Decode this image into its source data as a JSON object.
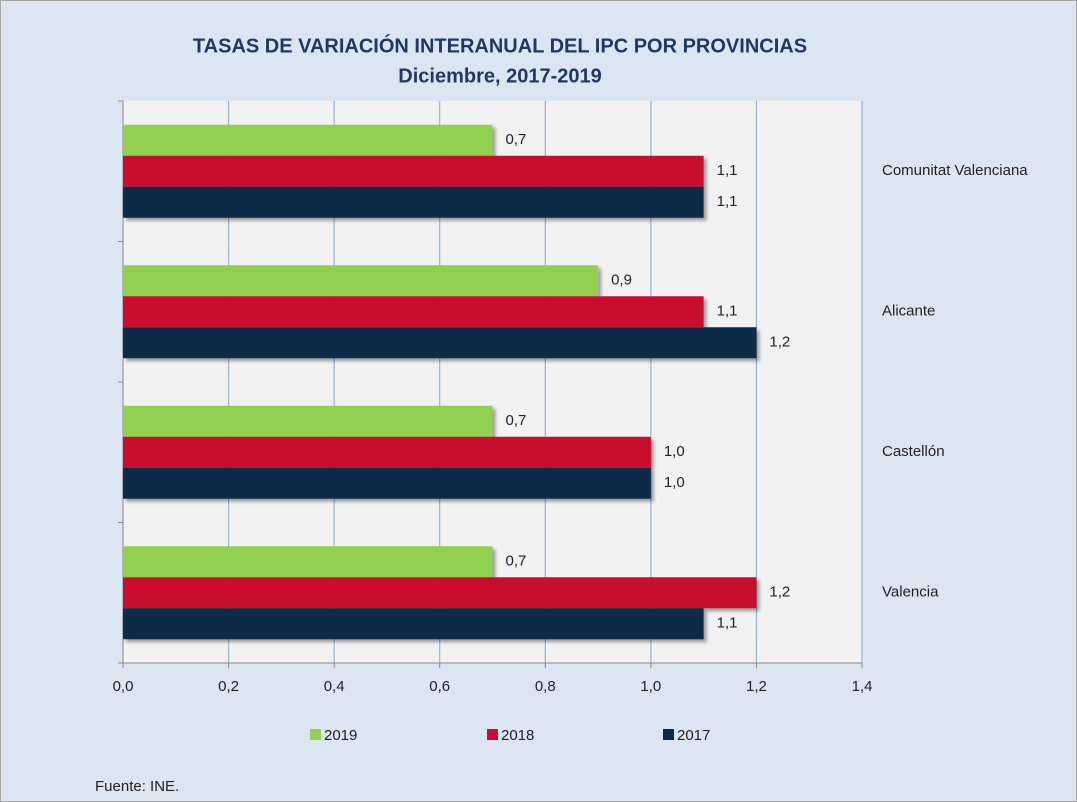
{
  "chart_data": {
    "type": "hbar",
    "title": "TASAS DE VARIACIÓN INTERANUAL DEL IPC POR PROVINCIAS",
    "subtitle": "Diciembre, 2017-2019",
    "categories": [
      "Comunitat Valenciana",
      "Alicante",
      "Castellón",
      "Valencia"
    ],
    "series": [
      {
        "name": "2019",
        "color": "#92d050",
        "values": [
          0.7,
          0.9,
          0.7,
          0.7
        ],
        "value_labels": [
          "0,7",
          "0,9",
          "0,7",
          "0,7"
        ]
      },
      {
        "name": "2018",
        "color": "#c8102e",
        "values": [
          1.1,
          1.1,
          1.0,
          1.2
        ],
        "value_labels": [
          "1,1",
          "1,1",
          "1,0",
          "1,2"
        ]
      },
      {
        "name": "2017",
        "color": "#0b2a4a",
        "values": [
          1.1,
          1.2,
          1.0,
          1.1
        ],
        "value_labels": [
          "1,1",
          "1,2",
          "1,0",
          "1,1"
        ]
      }
    ],
    "xlim": [
      0,
      1.4
    ],
    "xticks": [
      {
        "value": 0,
        "label": "0,0"
      },
      {
        "value": 0.2,
        "label": "0,2"
      },
      {
        "value": 0.4,
        "label": "0,4"
      },
      {
        "value": 0.6,
        "label": "0,6"
      },
      {
        "value": 0.8,
        "label": "0,8"
      },
      {
        "value": 1.0,
        "label": "1,0"
      },
      {
        "value": 1.2,
        "label": "1,2"
      },
      {
        "value": 1.4,
        "label": "1,4"
      }
    ],
    "grid": true,
    "legend": "bottom",
    "source": "Fuente: INE."
  }
}
